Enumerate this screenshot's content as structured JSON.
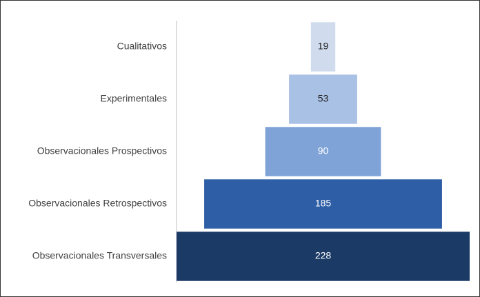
{
  "chart_data": {
    "type": "funnel",
    "categories": [
      "Cualitativos",
      "Experimentales",
      "Observacionales Prospectivos",
      "Observacionales Retrospectivos",
      "Observacionales Transversales"
    ],
    "values": [
      19,
      53,
      90,
      185,
      228
    ],
    "colors": [
      "#d0dcee",
      "#a9c1e4",
      "#7fa3d6",
      "#2e5fa6",
      "#1b3a66"
    ],
    "label_colors": [
      "#222222",
      "#222222",
      "#ffffff",
      "#ffffff",
      "#ffffff"
    ]
  }
}
